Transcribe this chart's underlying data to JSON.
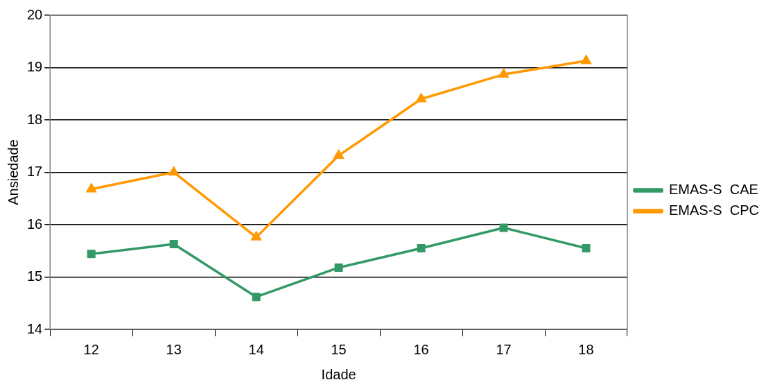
{
  "chart_data": {
    "type": "line",
    "xlabel": "Idade",
    "ylabel": "Ansiedade",
    "categories": [
      "12",
      "13",
      "14",
      "15",
      "16",
      "17",
      "18"
    ],
    "series": [
      {
        "name": "EMAS-S  CAE",
        "color": "#339966",
        "marker": "square",
        "values": [
          15.44,
          15.63,
          14.62,
          15.18,
          15.55,
          15.94,
          15.55
        ]
      },
      {
        "name": "EMAS-S  CPC",
        "color": "#ff9900",
        "marker": "triangle",
        "values": [
          16.68,
          17.0,
          15.76,
          17.32,
          18.4,
          18.87,
          19.13
        ]
      }
    ],
    "ylim": [
      14,
      20
    ],
    "yticks": [
      14,
      15,
      16,
      17,
      18,
      19,
      20
    ],
    "grid": "y",
    "legend": "right",
    "line_style": "solid"
  }
}
